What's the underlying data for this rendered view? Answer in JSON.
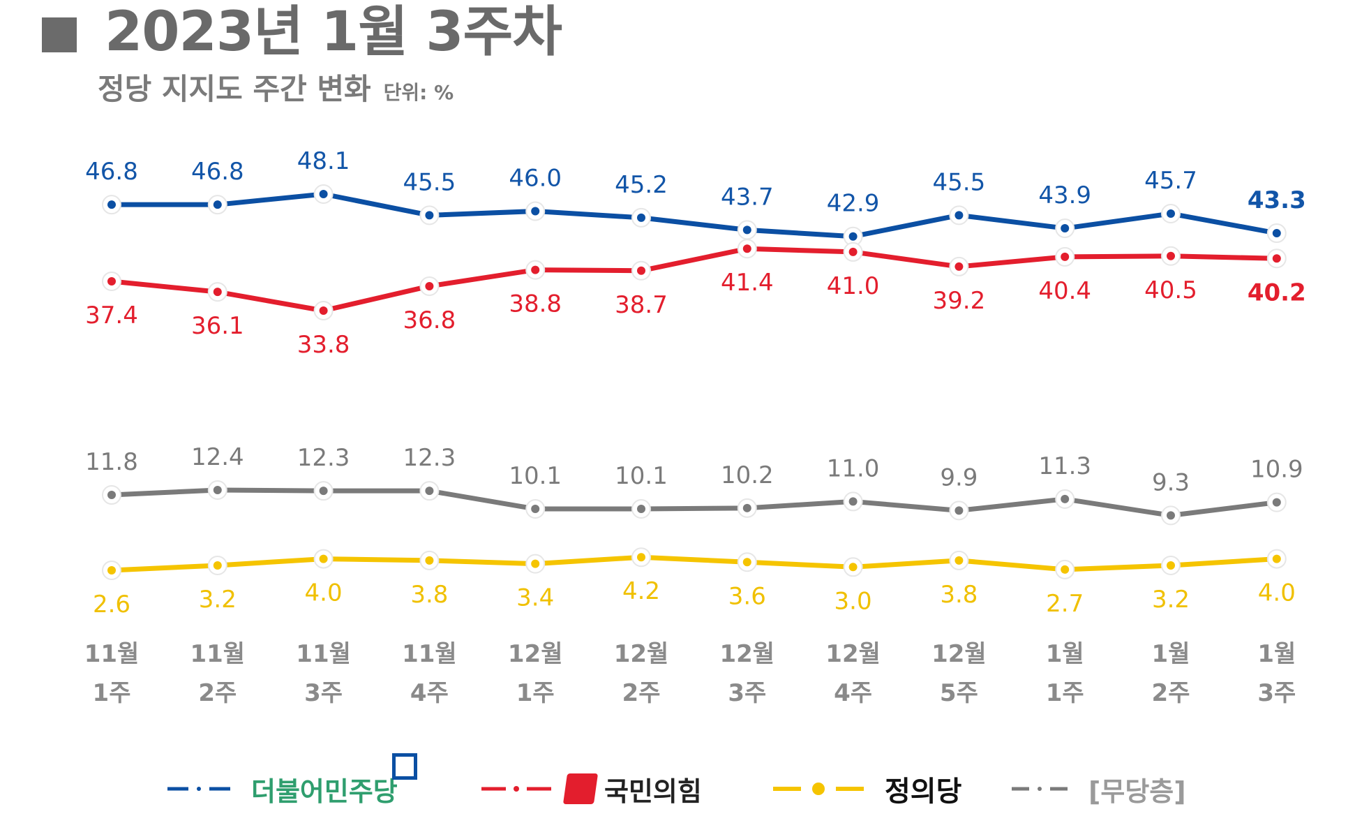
{
  "header": {
    "title": "2023년 1월 3주차",
    "subtitle": "정당 지지도 주간 변화",
    "unit": "단위: %"
  },
  "chart_data": {
    "type": "line",
    "title": "2023년 1월 3주차",
    "subtitle": "정당 지지도 주간 변화",
    "unit": "%",
    "categories": [
      [
        "11월",
        "1주"
      ],
      [
        "11월",
        "2주"
      ],
      [
        "11월",
        "3주"
      ],
      [
        "11월",
        "4주"
      ],
      [
        "12월",
        "1주"
      ],
      [
        "12월",
        "2주"
      ],
      [
        "12월",
        "3주"
      ],
      [
        "12월",
        "4주"
      ],
      [
        "12월",
        "5주"
      ],
      [
        "1월",
        "1주"
      ],
      [
        "1월",
        "2주"
      ],
      [
        "1월",
        "3주"
      ]
    ],
    "series": [
      {
        "name": "더불어민주당",
        "color": "#0b4fa3",
        "label_color": "#1255a8",
        "label_position": "above",
        "values": [
          46.8,
          46.8,
          48.1,
          45.5,
          46.0,
          45.2,
          43.7,
          42.9,
          45.5,
          43.9,
          45.7,
          43.3
        ]
      },
      {
        "name": "국민의힘",
        "color": "#e31e2d",
        "label_color": "#e31e2d",
        "label_position": "below",
        "values": [
          37.4,
          36.1,
          33.8,
          36.8,
          38.8,
          38.7,
          41.4,
          41.0,
          39.2,
          40.4,
          40.5,
          40.2
        ]
      },
      {
        "name": "[무당층]",
        "color": "#7a7a7a",
        "label_color": "#7a7a7a",
        "label_position": "above",
        "values": [
          11.8,
          12.4,
          12.3,
          12.3,
          10.1,
          10.1,
          10.2,
          11.0,
          9.9,
          11.3,
          9.3,
          10.9
        ]
      },
      {
        "name": "정의당",
        "color": "#f5c400",
        "label_color": "#f0c000",
        "label_position": "below",
        "values": [
          2.6,
          3.2,
          4.0,
          3.8,
          3.4,
          4.2,
          3.6,
          3.0,
          3.8,
          2.7,
          3.2,
          4.0
        ]
      }
    ],
    "labels": [
      "46.8",
      "46.8",
      "48.1",
      "45.5",
      "46.0",
      "45.2",
      "43.7",
      "42.9",
      "45.5",
      "43.9",
      "45.7",
      "43.3"
    ]
  },
  "legend": [
    {
      "label": "더불어민주당",
      "color": "#0b4fa3",
      "text_color": "#2f9e6e"
    },
    {
      "label": "국민의힘",
      "color": "#e31e2d",
      "text_color": "#222222"
    },
    {
      "label": "정의당",
      "color": "#f5c400",
      "text_color": "#111111"
    },
    {
      "label": "[무당층]",
      "color": "#7a7a7a",
      "text_color": "#9a9a9a"
    }
  ]
}
